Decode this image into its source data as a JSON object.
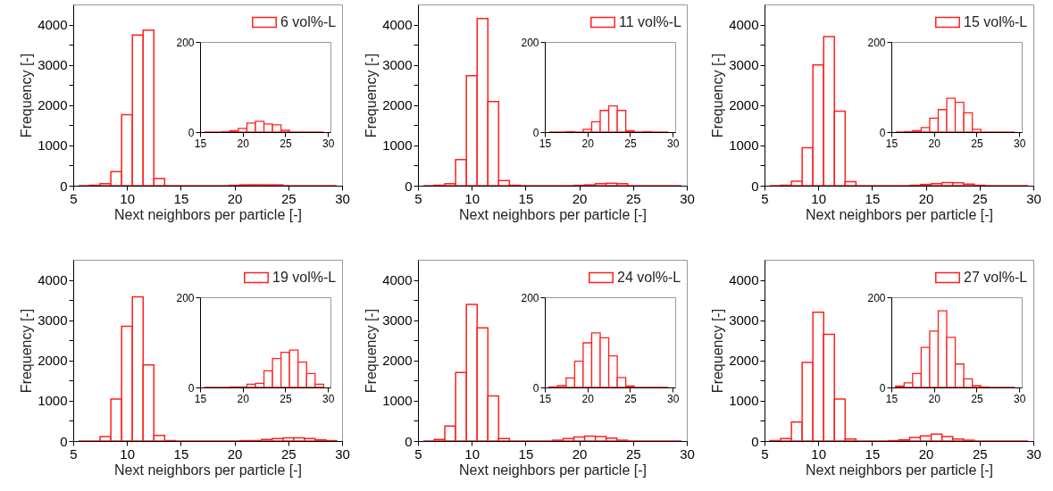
{
  "chart_data": [
    {
      "type": "histogram",
      "xlabel": "Next neighbors per particle [-]",
      "ylabel": "Frequency [-]",
      "bins": [
        5.5,
        6.5,
        7.5,
        8.5,
        9.5,
        10.5,
        11.5,
        12.5,
        13.5,
        14.5,
        15.5,
        16.5,
        17.5,
        18.5,
        19.5,
        20.5,
        21.5,
        22.5,
        23.5,
        24.5,
        25.5,
        26.5,
        27.5,
        28.5,
        29.5
      ],
      "series": [
        {
          "name": "6 vol%-L",
          "color": "#ff2020",
          "values": [
            0,
            10,
            50,
            350,
            1760,
            3740,
            3860,
            180,
            0,
            0,
            0,
            0,
            0,
            0,
            10,
            20,
            20,
            20,
            20,
            0,
            0,
            0,
            0,
            0
          ]
        }
      ],
      "xlim": [
        5,
        30
      ],
      "xticks": [
        5,
        10,
        15,
        20,
        25,
        30
      ],
      "ylim": [
        0,
        4500
      ],
      "yticks": [
        0,
        {
          "value": 500,
          "label": null
        },
        1000,
        {
          "value": 1500,
          "label": null
        },
        2000,
        {
          "value": 2500,
          "label": null
        },
        3000,
        {
          "value": 3500,
          "label": null
        },
        4000
      ],
      "legend": "top right"
    },
    {
      "type": "histogram",
      "bins": [
        15.5,
        16.5,
        17.5,
        18.5,
        19.5,
        20.5,
        21.5,
        22.5,
        23.5,
        24.5,
        25.5,
        26.5,
        27.5,
        28.5,
        29.5
      ],
      "values": [
        0,
        0,
        1,
        3,
        8,
        20,
        24,
        18,
        16,
        4,
        0,
        0,
        0,
        0
      ],
      "color": "#ff2020",
      "xlim": [
        15,
        30.3
      ],
      "xticks": [
        15,
        20,
        25,
        30
      ],
      "ylim": [
        0,
        200
      ],
      "yticks": [
        0,
        200
      ]
    },
    {
      "type": "histogram",
      "xlabel": "Next neighbors per particle [-]",
      "ylabel": "Frequency [-]",
      "bins": [
        5.5,
        6.5,
        7.5,
        8.5,
        9.5,
        10.5,
        11.5,
        12.5,
        13.5,
        14.5,
        15.5,
        16.5,
        17.5,
        18.5,
        19.5,
        20.5,
        21.5,
        22.5,
        23.5,
        24.5,
        25.5,
        26.5,
        27.5,
        28.5,
        29.5
      ],
      "series": [
        {
          "name": "11 vol%-L",
          "color": "#ff2020",
          "values": [
            0,
            10,
            50,
            650,
            2730,
            4150,
            2090,
            130,
            10,
            0,
            0,
            0,
            0,
            0,
            10,
            20,
            50,
            60,
            50,
            0,
            0,
            0,
            0,
            0
          ]
        }
      ],
      "xlim": [
        5,
        30
      ],
      "xticks": [
        5,
        10,
        15,
        20,
        25,
        30
      ],
      "ylim": [
        0,
        4500
      ],
      "yticks": [
        0,
        {
          "value": 500,
          "label": null
        },
        1000,
        {
          "value": 1500,
          "label": null
        },
        2000,
        {
          "value": 2500,
          "label": null
        },
        3000,
        {
          "value": 3500,
          "label": null
        },
        4000
      ],
      "legend": "top right"
    },
    {
      "type": "histogram",
      "bins": [
        15.5,
        16.5,
        17.5,
        18.5,
        19.5,
        20.5,
        21.5,
        22.5,
        23.5,
        24.5,
        25.5,
        26.5,
        27.5,
        28.5,
        29.5
      ],
      "values": [
        0,
        0,
        1,
        0,
        6,
        23,
        48,
        58,
        48,
        3,
        0,
        1,
        0,
        0
      ],
      "color": "#ff2020",
      "xlim": [
        15,
        30.3
      ],
      "xticks": [
        15,
        20,
        25,
        30
      ],
      "ylim": [
        0,
        200
      ],
      "yticks": [
        0,
        200
      ]
    },
    {
      "type": "histogram",
      "xlabel": "Next neighbors per particle [-]",
      "ylabel": "Frequency [-]",
      "bins": [
        5.5,
        6.5,
        7.5,
        8.5,
        9.5,
        10.5,
        11.5,
        12.5,
        13.5,
        14.5,
        15.5,
        16.5,
        17.5,
        18.5,
        19.5,
        20.5,
        21.5,
        22.5,
        23.5,
        24.5,
        25.5,
        26.5,
        27.5,
        28.5,
        29.5
      ],
      "series": [
        {
          "name": "15 vol%-L",
          "color": "#ff2020",
          "values": [
            0,
            10,
            110,
            940,
            3000,
            3700,
            1850,
            100,
            0,
            0,
            0,
            0,
            0,
            10,
            30,
            50,
            80,
            70,
            40,
            10,
            0,
            0,
            0,
            0
          ]
        }
      ],
      "xlim": [
        5,
        30
      ],
      "xticks": [
        5,
        10,
        15,
        20,
        25,
        30
      ],
      "ylim": [
        0,
        4500
      ],
      "yticks": [
        0,
        {
          "value": 500,
          "label": null
        },
        1000,
        {
          "value": 1500,
          "label": null
        },
        2000,
        {
          "value": 2500,
          "label": null
        },
        3000,
        {
          "value": 3500,
          "label": null
        },
        4000
      ],
      "legend": "top right"
    },
    {
      "type": "histogram",
      "bins": [
        15.5,
        16.5,
        17.5,
        18.5,
        19.5,
        20.5,
        21.5,
        22.5,
        23.5,
        24.5,
        25.5,
        26.5,
        27.5,
        28.5,
        29.5
      ],
      "values": [
        0,
        1,
        3,
        10,
        31,
        50,
        75,
        66,
        43,
        6,
        0,
        0,
        0,
        0
      ],
      "color": "#ff2020",
      "xlim": [
        15,
        30.3
      ],
      "xticks": [
        15,
        20,
        25,
        30
      ],
      "ylim": [
        0,
        200
      ],
      "yticks": [
        0,
        200
      ]
    },
    {
      "type": "histogram",
      "xlabel": "Next neighbors per particle [-]",
      "ylabel": "Frequency [-]",
      "bins": [
        5.5,
        6.5,
        7.5,
        8.5,
        9.5,
        10.5,
        11.5,
        12.5,
        13.5,
        14.5,
        15.5,
        16.5,
        17.5,
        18.5,
        19.5,
        20.5,
        21.5,
        22.5,
        23.5,
        24.5,
        25.5,
        26.5,
        27.5,
        28.5,
        29.5
      ],
      "series": [
        {
          "name": "19 vol%-L",
          "color": "#ff2020",
          "values": [
            0,
            0,
            110,
            1040,
            2850,
            3580,
            1890,
            140,
            10,
            0,
            0,
            0,
            0,
            0,
            0,
            10,
            10,
            40,
            60,
            80,
            80,
            60,
            30,
            10
          ]
        }
      ],
      "xlim": [
        5,
        30
      ],
      "xticks": [
        5,
        10,
        15,
        20,
        25,
        30
      ],
      "ylim": [
        0,
        4500
      ],
      "yticks": [
        0,
        {
          "value": 500,
          "label": null
        },
        1000,
        {
          "value": 1500,
          "label": null
        },
        2000,
        {
          "value": 2500,
          "label": null
        },
        3000,
        {
          "value": 3500,
          "label": null
        },
        4000
      ],
      "legend": "top right"
    },
    {
      "type": "histogram",
      "bins": [
        15.5,
        16.5,
        17.5,
        18.5,
        19.5,
        20.5,
        21.5,
        22.5,
        23.5,
        24.5,
        25.5,
        26.5,
        27.5,
        28.5,
        29.5
      ],
      "values": [
        0,
        0,
        0,
        1,
        1,
        7,
        9,
        37,
        64,
        78,
        83,
        56,
        31,
        7
      ],
      "color": "#ff2020",
      "xlim": [
        15,
        30.3
      ],
      "xticks": [
        15,
        20,
        25,
        30
      ],
      "ylim": [
        0,
        200
      ],
      "yticks": [
        0,
        200
      ]
    },
    {
      "type": "histogram",
      "xlabel": "Next neighbors per particle [-]",
      "ylabel": "Frequency [-]",
      "bins": [
        5.5,
        6.5,
        7.5,
        8.5,
        9.5,
        10.5,
        11.5,
        12.5,
        13.5,
        14.5,
        15.5,
        16.5,
        17.5,
        18.5,
        19.5,
        20.5,
        21.5,
        22.5,
        23.5,
        24.5,
        25.5,
        26.5,
        27.5,
        28.5,
        29.5
      ],
      "series": [
        {
          "name": "24 vol%-L",
          "color": "#ff2020",
          "values": [
            0,
            40,
            370,
            1700,
            3390,
            2810,
            1120,
            60,
            0,
            0,
            0,
            0,
            20,
            60,
            100,
            120,
            110,
            70,
            20,
            0,
            0,
            0,
            0,
            0
          ]
        }
      ],
      "xlim": [
        5,
        30
      ],
      "xticks": [
        5,
        10,
        15,
        20,
        25,
        30
      ],
      "ylim": [
        0,
        4500
      ],
      "yticks": [
        0,
        {
          "value": 500,
          "label": null
        },
        1000,
        {
          "value": 1500,
          "label": null
        },
        2000,
        {
          "value": 2500,
          "label": null
        },
        3000,
        {
          "value": 3500,
          "label": null
        },
        4000
      ],
      "legend": "top right"
    },
    {
      "type": "histogram",
      "bins": [
        15.5,
        16.5,
        17.5,
        18.5,
        19.5,
        20.5,
        21.5,
        22.5,
        23.5,
        24.5,
        25.5,
        26.5,
        27.5,
        28.5,
        29.5
      ],
      "values": [
        1,
        4,
        21,
        58,
        99,
        121,
        110,
        70,
        22,
        3,
        0,
        0,
        0,
        0
      ],
      "color": "#ff2020",
      "xlim": [
        15,
        30.3
      ],
      "xticks": [
        15,
        20,
        25,
        30
      ],
      "ylim": [
        0,
        200
      ],
      "yticks": [
        0,
        200
      ]
    },
    {
      "type": "histogram",
      "xlabel": "Next neighbors per particle [-]",
      "ylabel": "Frequency [-]",
      "bins": [
        5.5,
        6.5,
        7.5,
        8.5,
        9.5,
        10.5,
        11.5,
        12.5,
        13.5,
        14.5,
        15.5,
        16.5,
        17.5,
        18.5,
        19.5,
        20.5,
        21.5,
        22.5,
        23.5,
        24.5,
        25.5,
        26.5,
        27.5,
        28.5,
        29.5
      ],
      "series": [
        {
          "name": "27 vol%-L",
          "color": "#ff2020",
          "values": [
            10,
            60,
            470,
            1950,
            3200,
            2650,
            1040,
            50,
            0,
            0,
            0,
            10,
            30,
            90,
            130,
            170,
            110,
            50,
            20,
            0,
            0,
            0,
            0,
            0
          ]
        }
      ],
      "xlim": [
        5,
        30
      ],
      "xticks": [
        5,
        10,
        15,
        20,
        25,
        30
      ],
      "ylim": [
        0,
        4500
      ],
      "yticks": [
        0,
        {
          "value": 500,
          "label": null
        },
        1000,
        {
          "value": 1500,
          "label": null
        },
        2000,
        {
          "value": 2500,
          "label": null
        },
        3000,
        {
          "value": 3500,
          "label": null
        },
        4000
      ],
      "legend": "top right"
    },
    {
      "type": "histogram",
      "bins": [
        15.5,
        16.5,
        17.5,
        18.5,
        19.5,
        20.5,
        21.5,
        22.5,
        23.5,
        24.5,
        25.5,
        26.5,
        27.5,
        28.5,
        29.5
      ],
      "values": [
        3,
        10,
        31,
        89,
        125,
        170,
        111,
        52,
        19,
        4,
        1,
        0,
        0,
        0
      ],
      "color": "#ff2020",
      "xlim": [
        15,
        30.3
      ],
      "xticks": [
        15,
        20,
        25,
        30
      ],
      "ylim": [
        0,
        200
      ],
      "yticks": [
        0,
        200
      ]
    }
  ]
}
